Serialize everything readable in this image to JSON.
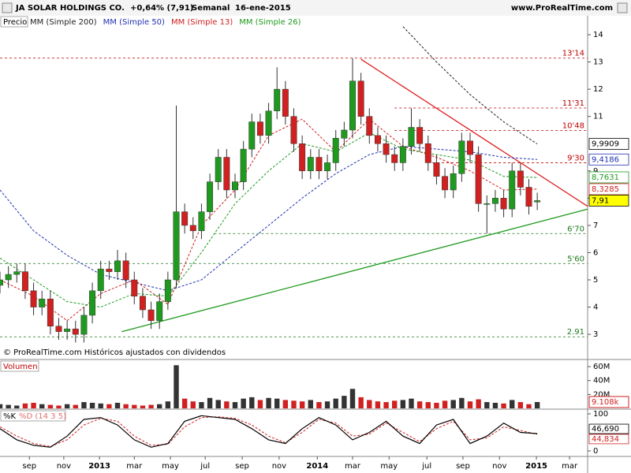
{
  "chart_data": {
    "type": "candlestick",
    "title": "JA SOLAR HOLDINGS CO.",
    "change": "+0,64% (7,91)",
    "period": "Semanal",
    "date": "16-ene-2015",
    "source": "www.ProRealTime.com",
    "footer": "© ProRealTime.com Históricos ajustados con dividendos",
    "price_label": "Precio",
    "up_color": "#1f9a1f",
    "down_color": "#d02020",
    "x": [
      0,
      2,
      4,
      6,
      8,
      10,
      12,
      14,
      16,
      18,
      20,
      22,
      24,
      26,
      28,
      30,
      32,
      34,
      36,
      38,
      40,
      42,
      44,
      46,
      48,
      50,
      52,
      54,
      56,
      58,
      60,
      62,
      64,
      66,
      68,
      70,
      72,
      74,
      76,
      78,
      80,
      82,
      84,
      86,
      88,
      90,
      92,
      94,
      96,
      98,
      100,
      102,
      104,
      106,
      108,
      110,
      112,
      114,
      116,
      118,
      120,
      122,
      124,
      126,
      128
    ],
    "open": [
      4.8,
      5.0,
      5.2,
      5.3,
      4.6,
      4.0,
      4.3,
      3.3,
      3.1,
      3.2,
      3.0,
      3.7,
      4.6,
      5.4,
      5.3,
      5.7,
      5.0,
      4.4,
      3.9,
      3.5,
      4.2,
      5.0,
      7.5,
      7.0,
      6.8,
      7.5,
      8.6,
      9.5,
      8.3,
      8.6,
      9.8,
      10.8,
      10.3,
      11.2,
      12.0,
      11.0,
      10.0,
      9.0,
      9.5,
      9.0,
      9.3,
      10.2,
      10.5,
      12.3,
      11.0,
      10.3,
      10.0,
      9.6,
      9.3,
      9.9,
      10.6,
      10.0,
      9.3,
      8.8,
      8.3,
      8.9,
      10.1,
      9.6,
      7.8,
      7.8,
      8.0,
      7.6,
      9.0,
      8.4,
      7.86
    ],
    "high": [
      5.3,
      5.5,
      5.6,
      5.6,
      4.9,
      4.6,
      4.6,
      3.6,
      3.5,
      3.5,
      4.0,
      4.9,
      5.7,
      5.7,
      6.1,
      6.0,
      5.3,
      4.7,
      4.2,
      4.5,
      5.3,
      11.4,
      7.8,
      7.3,
      7.8,
      8.9,
      9.8,
      9.8,
      8.9,
      10.1,
      11.1,
      11.1,
      11.5,
      12.8,
      12.3,
      11.3,
      10.3,
      9.8,
      9.8,
      9.6,
      10.5,
      10.8,
      13.14,
      12.6,
      11.3,
      10.6,
      10.3,
      9.9,
      10.2,
      11.3,
      10.9,
      10.3,
      9.6,
      9.1,
      9.2,
      10.4,
      10.4,
      9.9,
      8.1,
      8.3,
      8.3,
      9.3,
      9.3,
      8.7,
      8.2
    ],
    "low": [
      4.5,
      4.7,
      4.9,
      4.3,
      3.7,
      3.7,
      3.0,
      2.8,
      2.8,
      2.7,
      2.7,
      3.4,
      4.3,
      5.0,
      5.0,
      4.7,
      4.1,
      3.6,
      3.2,
      3.2,
      3.9,
      4.7,
      6.7,
      6.5,
      6.5,
      7.2,
      8.3,
      8.0,
      8.0,
      8.3,
      9.5,
      10.0,
      10.0,
      10.9,
      10.7,
      9.7,
      8.7,
      8.7,
      8.7,
      8.7,
      9.0,
      9.9,
      10.2,
      10.7,
      10.0,
      9.7,
      9.3,
      9.0,
      9.0,
      9.6,
      9.7,
      9.0,
      8.5,
      8.0,
      8.0,
      8.6,
      9.3,
      7.5,
      6.7,
      7.5,
      7.3,
      7.3,
      8.1,
      7.4,
      7.56
    ],
    "close": [
      5.0,
      5.2,
      5.3,
      4.6,
      4.0,
      4.3,
      3.3,
      3.1,
      3.2,
      3.0,
      3.7,
      4.6,
      5.4,
      5.3,
      5.7,
      5.0,
      4.4,
      3.9,
      3.5,
      4.2,
      5.0,
      7.5,
      7.0,
      6.8,
      7.5,
      8.6,
      9.5,
      8.3,
      8.6,
      9.8,
      10.8,
      10.3,
      11.2,
      12.0,
      11.0,
      10.0,
      9.0,
      9.5,
      9.0,
      9.3,
      10.2,
      10.5,
      12.3,
      11.0,
      10.3,
      10.0,
      9.6,
      9.3,
      9.9,
      10.6,
      10.0,
      9.3,
      8.8,
      8.3,
      8.9,
      10.1,
      9.6,
      7.8,
      7.8,
      8.0,
      7.6,
      9.0,
      8.4,
      7.7,
      7.91
    ],
    "xlim": [
      0,
      140
    ],
    "xticks": [
      {
        "value": 7,
        "label": "sep"
      },
      {
        "value": 15.2,
        "label": "nov"
      },
      {
        "value": 23.7,
        "label": "2013"
      },
      {
        "value": 32,
        "label": "mar"
      },
      {
        "value": 40.6,
        "label": "may"
      },
      {
        "value": 48.9,
        "label": "jul"
      },
      {
        "value": 57.7,
        "label": "sep"
      },
      {
        "value": 66.5,
        "label": "nov"
      },
      {
        "value": 75.6,
        "label": "2014"
      },
      {
        "value": 84,
        "label": "mar"
      },
      {
        "value": 92.7,
        "label": "may"
      },
      {
        "value": 101.7,
        "label": "jul"
      },
      {
        "value": 110.3,
        "label": "sep"
      },
      {
        "value": 119,
        "label": "nov"
      },
      {
        "value": 127.8,
        "label": "2015"
      },
      {
        "value": 135.7,
        "label": "mar"
      }
    ],
    "ylim": [
      2.54,
      14.29
    ],
    "yticks": [
      3,
      4,
      5,
      6,
      7,
      8,
      9,
      11,
      12,
      13,
      14
    ],
    "overlays": [
      {
        "name": "MM (Simple 200)",
        "color": "#222222",
        "dash": true,
        "x": [
          96,
          104,
          112,
          120,
          128
        ],
        "values": [
          14.3,
          13.0,
          11.8,
          10.8,
          9.99
        ]
      },
      {
        "name": "MM (Simple 50)",
        "color": "#2030b0",
        "dash": true,
        "x": [
          0,
          8,
          16,
          24,
          32,
          40,
          48,
          56,
          64,
          72,
          80,
          88,
          96,
          104,
          112,
          120,
          128
        ],
        "values": [
          8.3,
          6.8,
          5.9,
          5.2,
          4.9,
          4.6,
          5.0,
          6.0,
          7.0,
          8.0,
          8.9,
          9.6,
          9.9,
          9.8,
          9.7,
          9.5,
          9.42
        ]
      },
      {
        "name": "MM (Simple 13)",
        "color": "#d02020",
        "dash": true,
        "x": [
          0,
          8,
          16,
          24,
          32,
          40,
          48,
          56,
          64,
          72,
          80,
          88,
          96,
          104,
          112,
          120,
          128
        ],
        "values": [
          5.0,
          4.4,
          3.5,
          4.5,
          5.0,
          4.1,
          7.0,
          8.3,
          10.3,
          10.9,
          9.7,
          10.9,
          9.9,
          9.5,
          9.0,
          8.3,
          8.33
        ]
      },
      {
        "name": "MM (Simple 26)",
        "color": "#1f9a1f",
        "dash": true,
        "x": [
          0,
          8,
          16,
          24,
          32,
          40,
          48,
          56,
          64,
          72,
          80,
          88,
          96,
          104,
          112,
          120,
          128
        ],
        "values": [
          5.8,
          5.0,
          4.2,
          4.0,
          4.5,
          4.4,
          6.0,
          7.8,
          9.0,
          10.0,
          9.7,
          10.4,
          9.8,
          9.6,
          9.4,
          8.8,
          8.76
        ]
      }
    ],
    "levels": [
      {
        "value": 13.14,
        "label": "13'14",
        "color": "#c00000",
        "x_start": 0
      },
      {
        "value": 11.31,
        "label": "11'31",
        "color": "#c00000",
        "x_start": 94
      },
      {
        "value": 10.48,
        "label": "10'48",
        "color": "#c00000",
        "x_start": 94
      },
      {
        "value": 9.3,
        "label": "9'30",
        "color": "#c00000",
        "x_start": 103
      },
      {
        "value": 6.7,
        "label": "6'70",
        "color": "#1a7a1a",
        "x_start": 51
      },
      {
        "value": 5.6,
        "label": "5'60",
        "color": "#1a7a1a",
        "x_start": 0
      },
      {
        "value": 2.91,
        "label": "2.91",
        "color": "#1a7a1a",
        "x_start": 0
      }
    ],
    "trendlines": [
      {
        "color": "#e02020",
        "x": [
          86,
          140
        ],
        "values": [
          13.1,
          7.7
        ]
      },
      {
        "color": "#1f9a1f",
        "x": [
          29,
          140
        ],
        "values": [
          3.1,
          7.6
        ]
      }
    ],
    "price_boxes": [
      {
        "value": 9.9909,
        "label": "9,9909",
        "color": "#000000",
        "bg": "#ffffff"
      },
      {
        "value": 9.4186,
        "label": "9,4186",
        "color": "#2030b0",
        "bg": "#ffffff"
      },
      {
        "value": 8.7631,
        "label": "8,7631",
        "color": "#1f9a1f",
        "bg": "#ffffff"
      },
      {
        "value": 8.3285,
        "label": "8,3285",
        "color": "#d02020",
        "bg": "#ffffff"
      },
      {
        "value": 7.91,
        "label": "7,91",
        "color": "#000000",
        "bg": "#ffff00"
      }
    ],
    "volume": {
      "title": "Volumen",
      "values": [
        6,
        5,
        4,
        7,
        8,
        6,
        5,
        4,
        6,
        5,
        9,
        8,
        7,
        6,
        8,
        6,
        5,
        4,
        5,
        6,
        10,
        62,
        14,
        10,
        9,
        15,
        12,
        10,
        9,
        14,
        16,
        12,
        15,
        14,
        12,
        11,
        10,
        12,
        9,
        10,
        14,
        18,
        28,
        16,
        12,
        10,
        9,
        11,
        12,
        14,
        10,
        9,
        8,
        11,
        12,
        15,
        10,
        13,
        9,
        8,
        7,
        12,
        9,
        6,
        9.108
      ],
      "ylim": [
        0,
        68
      ],
      "yticks": [
        {
          "value": 60,
          "label": "60M"
        },
        {
          "value": 40,
          "label": "40M"
        },
        {
          "value": 20,
          "label": "20M"
        }
      ],
      "last_label": "9.108k"
    },
    "stochastic": {
      "k_name": "%K",
      "d_name": "%D (14 3 5)",
      "k_color": "#000000",
      "d_color": "#d02020",
      "x": [
        0,
        4,
        8,
        12,
        16,
        20,
        24,
        28,
        32,
        36,
        40,
        44,
        48,
        52,
        56,
        60,
        64,
        68,
        72,
        76,
        80,
        84,
        88,
        92,
        96,
        100,
        104,
        108,
        112,
        116,
        120,
        124,
        128
      ],
      "k": [
        60,
        30,
        15,
        10,
        40,
        85,
        90,
        70,
        30,
        10,
        20,
        80,
        95,
        90,
        85,
        60,
        30,
        20,
        60,
        90,
        70,
        30,
        50,
        80,
        40,
        20,
        70,
        85,
        20,
        40,
        75,
        50,
        46.69
      ],
      "d": [
        65,
        40,
        20,
        12,
        30,
        70,
        88,
        80,
        40,
        15,
        18,
        65,
        90,
        92,
        88,
        70,
        40,
        22,
        50,
        85,
        75,
        40,
        45,
        75,
        50,
        25,
        60,
        80,
        30,
        35,
        65,
        55,
        44.834
      ],
      "ylim": [
        -12.8,
        110.6
      ],
      "yticks": [
        100,
        0
      ],
      "boxes": [
        {
          "value": 46.69,
          "label": "46,690",
          "color": "#000000"
        },
        {
          "value": 44.834,
          "label": "44,834",
          "color": "#d02020"
        }
      ]
    }
  }
}
